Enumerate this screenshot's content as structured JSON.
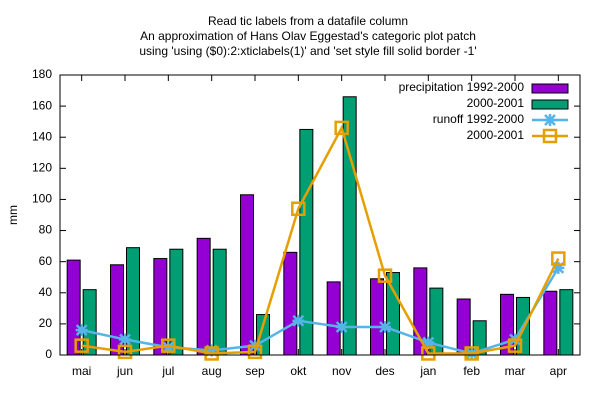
{
  "chart_data": {
    "type": "bar",
    "title": [
      "Read tic labels from a datafile column",
      "An approximation of Hans Olav Eggestad's categoric plot patch",
      "using 'using ($0):2:xticlabels(1)' and 'set style fill solid border -1'"
    ],
    "ylabel": "mm",
    "categories": [
      "mai",
      "jun",
      "jul",
      "aug",
      "sep",
      "okt",
      "nov",
      "des",
      "jan",
      "feb",
      "mar",
      "apr"
    ],
    "ylim": [
      0,
      180
    ],
    "yticks": [
      0,
      20,
      40,
      60,
      80,
      100,
      120,
      140,
      160,
      180
    ],
    "grid": false,
    "legend": "top-right",
    "series": [
      {
        "name": "precipitation 1992-2000",
        "type": "bar",
        "color": "#9400d3",
        "values": [
          61,
          58,
          62,
          75,
          103,
          66,
          47,
          49,
          56,
          36,
          39,
          41
        ]
      },
      {
        "name": "2000-2001",
        "type": "bar",
        "color": "#009e73",
        "values": [
          42,
          69,
          68,
          68,
          26,
          145,
          166,
          53,
          43,
          22,
          37,
          42
        ]
      },
      {
        "name": "runoff 1992-2000",
        "type": "line",
        "marker": "star",
        "color": "#56b4e9",
        "values": [
          16,
          10,
          5,
          3,
          6,
          22,
          18,
          18,
          8,
          1,
          10,
          56
        ]
      },
      {
        "name": "2000-2001",
        "type": "line",
        "marker": "square",
        "color": "#e69f00",
        "values": [
          6,
          2,
          6,
          1,
          2,
          94,
          146,
          51,
          1,
          1,
          6,
          62
        ]
      }
    ]
  }
}
